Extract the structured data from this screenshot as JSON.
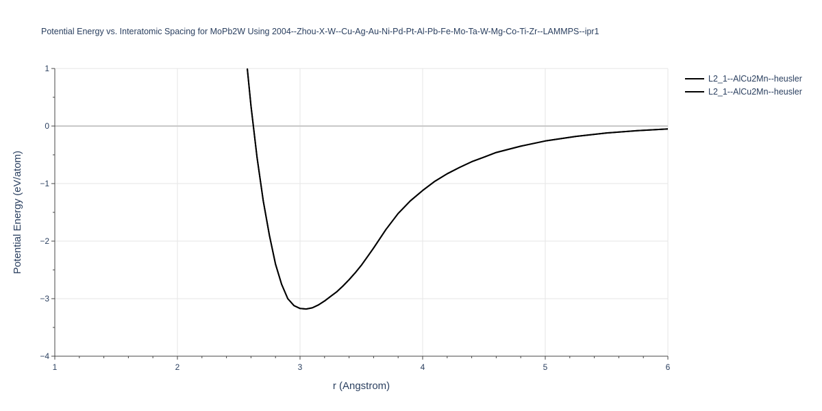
{
  "chart_data": {
    "type": "line",
    "title": "Potential Energy vs. Interatomic Spacing for MoPb2W Using 2004--Zhou-X-W--Cu-Ag-Au-Ni-Pd-Pt-Al-Pb-Fe-Mo-Ta-W-Mg-Co-Ti-Zr--LAMMPS--ipr1",
    "xlabel": "r (Angstrom)",
    "ylabel": "Potential Energy (eV/atom)",
    "xlim": [
      1,
      6
    ],
    "ylim": [
      -4,
      1
    ],
    "xticks": [
      1,
      2,
      3,
      4,
      5,
      6
    ],
    "yticks": [
      -4,
      -3,
      -2,
      -1,
      0,
      1
    ],
    "xtick_labels": [
      "1",
      "2",
      "3",
      "4",
      "5",
      "6"
    ],
    "ytick_labels": [
      "−4",
      "−3",
      "−2",
      "−1",
      "0",
      "1"
    ],
    "grid": true,
    "legend_position": "top-right",
    "series": [
      {
        "name": "L2_1--AlCu2Mn--heusler",
        "color": "#000000",
        "x": [
          2.57,
          2.6,
          2.65,
          2.7,
          2.75,
          2.8,
          2.85,
          2.9,
          2.95,
          3.0,
          3.05,
          3.1,
          3.15,
          3.2,
          3.25,
          3.3,
          3.35,
          3.4,
          3.45,
          3.5,
          3.55,
          3.6,
          3.65,
          3.7,
          3.8,
          3.9,
          4.0,
          4.1,
          4.2,
          4.3,
          4.4,
          4.5,
          4.6,
          4.8,
          5.0,
          5.25,
          5.5,
          5.75,
          6.0
        ],
        "y": [
          1.0,
          0.35,
          -0.55,
          -1.3,
          -1.9,
          -2.4,
          -2.75,
          -3.0,
          -3.12,
          -3.17,
          -3.18,
          -3.16,
          -3.11,
          -3.04,
          -2.96,
          -2.88,
          -2.78,
          -2.67,
          -2.55,
          -2.42,
          -2.27,
          -2.12,
          -1.96,
          -1.8,
          -1.52,
          -1.3,
          -1.12,
          -0.96,
          -0.83,
          -0.72,
          -0.62,
          -0.54,
          -0.46,
          -0.35,
          -0.26,
          -0.18,
          -0.12,
          -0.08,
          -0.05
        ]
      },
      {
        "name": "L2_1--AlCu2Mn--heusler",
        "color": "#000000",
        "x": [
          2.57,
          2.6,
          2.65,
          2.7,
          2.75,
          2.8,
          2.85,
          2.9,
          2.95,
          3.0,
          3.05,
          3.1,
          3.15,
          3.2,
          3.25,
          3.3,
          3.35,
          3.4,
          3.45,
          3.5,
          3.55,
          3.6,
          3.65,
          3.7,
          3.8,
          3.9,
          4.0,
          4.1,
          4.2,
          4.3,
          4.4,
          4.5,
          4.6,
          4.8,
          5.0,
          5.25,
          5.5,
          5.75,
          6.0
        ],
        "y": [
          1.0,
          0.35,
          -0.55,
          -1.3,
          -1.9,
          -2.4,
          -2.75,
          -3.0,
          -3.12,
          -3.17,
          -3.18,
          -3.16,
          -3.11,
          -3.04,
          -2.96,
          -2.88,
          -2.78,
          -2.67,
          -2.55,
          -2.42,
          -2.27,
          -2.12,
          -1.96,
          -1.8,
          -1.52,
          -1.3,
          -1.12,
          -0.96,
          -0.83,
          -0.72,
          -0.62,
          -0.54,
          -0.46,
          -0.35,
          -0.26,
          -0.18,
          -0.12,
          -0.08,
          -0.05
        ]
      }
    ]
  }
}
